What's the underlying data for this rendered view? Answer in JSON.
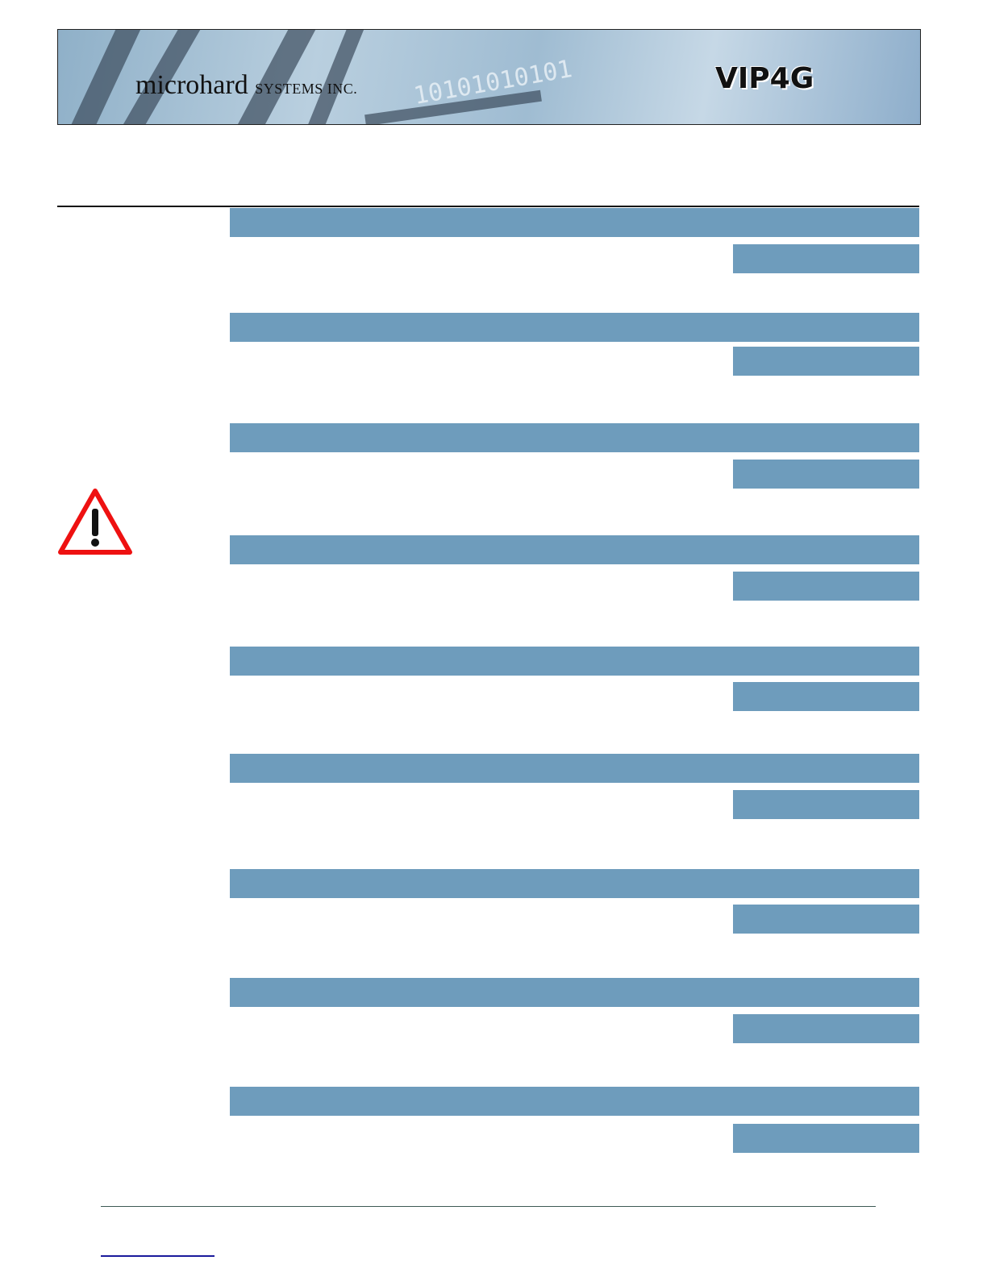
{
  "header": {
    "company": "microhard",
    "company_suffix": "SYSTEMS INC.",
    "product": "VIP4G",
    "binary_decoration": "10101010101"
  },
  "sections": [
    {
      "title": "",
      "tag": ""
    },
    {
      "title": "",
      "tag": ""
    },
    {
      "title": "",
      "tag": ""
    },
    {
      "title": "",
      "tag": ""
    },
    {
      "title": "",
      "tag": ""
    },
    {
      "title": "",
      "tag": ""
    },
    {
      "title": "",
      "tag": ""
    },
    {
      "title": "",
      "tag": ""
    },
    {
      "title": "",
      "tag": ""
    }
  ],
  "icons": {
    "warning": "warning-triangle-icon"
  },
  "colors": {
    "section_bar": "#6e9cbc",
    "warning": "#e11",
    "footer_rule": "#3d5a55",
    "footer_link": "#1a1a9c"
  }
}
